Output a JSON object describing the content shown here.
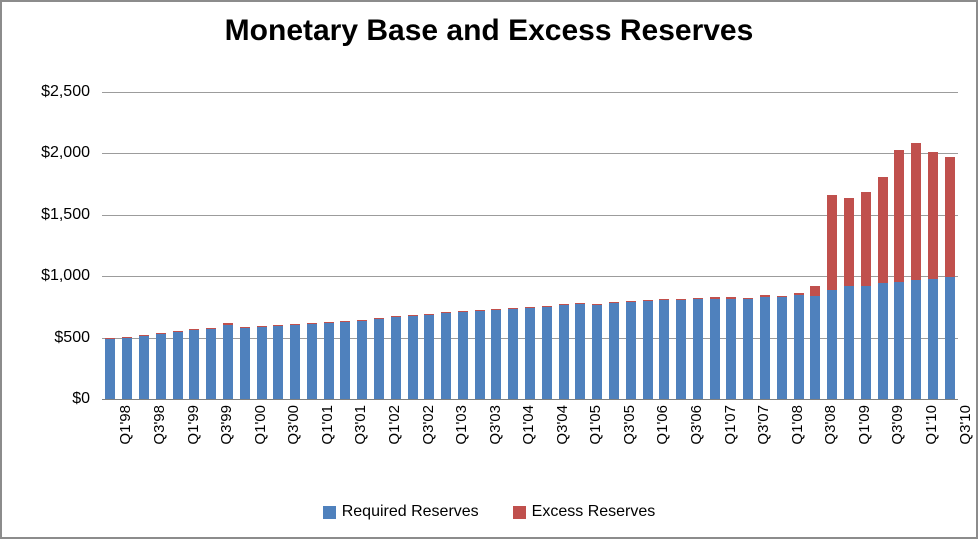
{
  "title": "Monetary Base and Excess Reserves",
  "colors": {
    "required": "#4F81BD",
    "excess": "#C0504D",
    "gridline": "#9C9C9C",
    "axis_line": "#7F7F7F",
    "border": "#8C8C8C",
    "text": "#000000"
  },
  "legend": {
    "items": [
      {
        "label": "Required Reserves",
        "color": "#4F81BD"
      },
      {
        "label": "Excess Reserves",
        "color": "#C0504D"
      }
    ],
    "position": "bottom-center"
  },
  "y_axis": {
    "min": 0,
    "max": 2500,
    "step": 500,
    "ticks": [
      {
        "label": "$2,500",
        "value": 2500
      },
      {
        "label": "$2,000",
        "value": 2000
      },
      {
        "label": "$1,500",
        "value": 1500
      },
      {
        "label": "$1,000",
        "value": 1000
      },
      {
        "label": "$500",
        "value": 500
      },
      {
        "label": "$0",
        "value": 0
      }
    ],
    "grid": true
  },
  "x_axis": {
    "label_every_n": 2,
    "label_rotation_deg": 90
  },
  "chart_data": {
    "type": "bar",
    "stacked": true,
    "title": "Monetary Base and Excess Reserves",
    "xlabel": "",
    "ylabel": "",
    "ylim": [
      0,
      2500
    ],
    "categories": [
      "Q1'98",
      "Q2'98",
      "Q3'98",
      "Q4'98",
      "Q1'99",
      "Q2'99",
      "Q3'99",
      "Q4'99",
      "Q1'00",
      "Q2'00",
      "Q3'00",
      "Q4'00",
      "Q1'01",
      "Q2'01",
      "Q3'01",
      "Q4'01",
      "Q1'02",
      "Q2'02",
      "Q3'02",
      "Q4'02",
      "Q1'03",
      "Q2'03",
      "Q3'03",
      "Q4'03",
      "Q1'04",
      "Q2'04",
      "Q3'04",
      "Q4'04",
      "Q1'05",
      "Q2'05",
      "Q3'05",
      "Q4'05",
      "Q1'06",
      "Q2'06",
      "Q3'06",
      "Q4'06",
      "Q1'07",
      "Q2'07",
      "Q3'07",
      "Q4'07",
      "Q1'08",
      "Q2'08",
      "Q3'08",
      "Q4'08",
      "Q1'09",
      "Q2'09",
      "Q3'09",
      "Q4'09",
      "Q1'10",
      "Q2'10",
      "Q3'10"
    ],
    "shown_tick_labels": [
      "Q1'98",
      "Q3'98",
      "Q1'99",
      "Q3'99",
      "Q1'00",
      "Q3'00",
      "Q1'01",
      "Q3'01",
      "Q1'02",
      "Q3'02",
      "Q1'03",
      "Q3'03",
      "Q1'04",
      "Q3'04",
      "Q1'05",
      "Q3'05",
      "Q1'06",
      "Q3'06",
      "Q1'07",
      "Q3'07",
      "Q1'08",
      "Q3'08",
      "Q1'09",
      "Q3'09",
      "Q1'10",
      "Q3'10"
    ],
    "series": [
      {
        "name": "Required Reserves",
        "color": "#4F81BD",
        "values": [
          488,
          494,
          512,
          533,
          549,
          560,
          572,
          602,
          578,
          586,
          592,
          600,
          610,
          620,
          630,
          636,
          650,
          668,
          678,
          688,
          702,
          710,
          718,
          728,
          732,
          742,
          750,
          762,
          775,
          768,
          778,
          790,
          800,
          808,
          808,
          816,
          815,
          818,
          818,
          832,
          831,
          843,
          840,
          885,
          920,
          922,
          948,
          952,
          970,
          980,
          990
        ]
      },
      {
        "name": "Excess Reserves",
        "color": "#C0504D",
        "values": [
          8,
          8,
          8,
          10,
          10,
          10,
          10,
          14,
          10,
          10,
          10,
          10,
          10,
          10,
          12,
          10,
          10,
          10,
          10,
          10,
          12,
          10,
          10,
          10,
          10,
          12,
          10,
          12,
          12,
          10,
          10,
          10,
          10,
          10,
          10,
          10,
          14,
          14,
          12,
          14,
          12,
          16,
          80,
          770,
          720,
          765,
          865,
          1078,
          1118,
          1038,
          980
        ]
      }
    ]
  }
}
